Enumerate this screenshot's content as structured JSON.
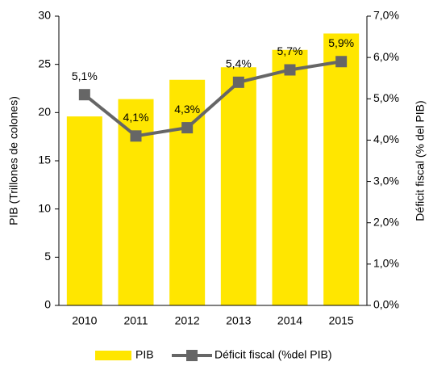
{
  "chart_data": {
    "type": "bar",
    "categories": [
      "2010",
      "2011",
      "2012",
      "2013",
      "2014",
      "2015"
    ],
    "series": [
      {
        "name": "PIB",
        "type": "bar",
        "color": "#ffe600",
        "values": [
          19.6,
          21.4,
          23.4,
          24.7,
          26.5,
          28.2
        ]
      },
      {
        "name": "Déficit fiscal (%del PIB)",
        "type": "line",
        "axis": "y2",
        "color": "#666666",
        "values": [
          5.1,
          4.1,
          4.3,
          5.4,
          5.7,
          5.9
        ],
        "value_labels": [
          "5,1%",
          "4,1%",
          "4,3%",
          "5,4%",
          "5,7%",
          "5,9%"
        ]
      }
    ],
    "ylabel": "PIB (Trillones de colones)",
    "y2label": "Déficit fiscal (% del PIB)",
    "ylim": [
      0,
      30
    ],
    "yticks": [
      0,
      5,
      10,
      15,
      20,
      25,
      30
    ],
    "y2lim": [
      0,
      7
    ],
    "y2ticks": [
      {
        "value": 0,
        "label": "0,0%"
      },
      {
        "value": 1,
        "label": "1,0%"
      },
      {
        "value": 2,
        "label": "2,0%"
      },
      {
        "value": 3,
        "label": "3,0%"
      },
      {
        "value": 4,
        "label": "4,0%"
      },
      {
        "value": 5,
        "label": "5,0%"
      },
      {
        "value": 6,
        "label": "6,0%"
      },
      {
        "value": 7,
        "label": "7,0%"
      }
    ],
    "legend": "bottom"
  }
}
